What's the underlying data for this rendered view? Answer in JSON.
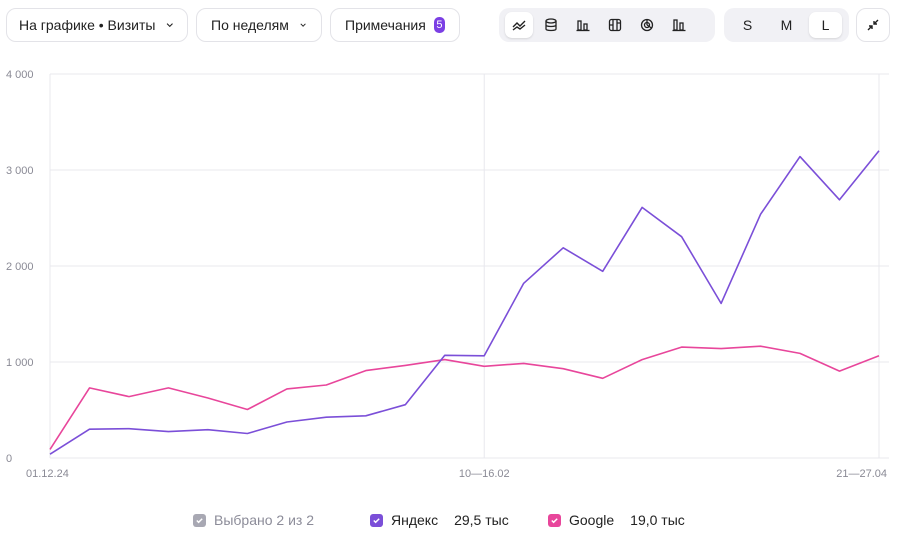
{
  "toolbar": {
    "chart_metric_dropdown": "На графике • Визиты",
    "grouping_dropdown": "По неделям",
    "notes_button": "Примечания",
    "notes_count": "5",
    "size_options": [
      "S",
      "M",
      "L"
    ],
    "selected_size": "L",
    "chart_type_icons": [
      "line-chart-icon",
      "stacked-area-icon",
      "bar-chart-icon",
      "stacked-bar-icon",
      "pie-chart-icon",
      "grouped-bar-icon"
    ]
  },
  "colors": {
    "yandex": "#7b4fd8",
    "google": "#e8469b",
    "accent": "#7b3fe4",
    "grid": "#e8e8ee"
  },
  "legend": {
    "selected": "Выбрано 2 из 2",
    "items": [
      {
        "name": "Яндекс",
        "total": "29,5 тыс"
      },
      {
        "name": "Google",
        "total": "19,0 тыс"
      }
    ]
  },
  "chart_data": {
    "type": "line",
    "x_labels_shown": [
      "01.12.24",
      "10—16.02",
      "21—27.04"
    ],
    "y_ticks": [
      "4 000",
      "3 000",
      "2 000",
      "1 000",
      "0"
    ],
    "ylim": [
      0,
      4000
    ],
    "grid": true,
    "points_count": 22,
    "series": [
      {
        "name": "Яндекс",
        "values": [
          40,
          300,
          305,
          275,
          295,
          255,
          375,
          425,
          440,
          555,
          1070,
          1065,
          1820,
          2190,
          1945,
          2610,
          2305,
          1610,
          2540,
          3140,
          2690,
          3200
        ]
      },
      {
        "name": "Google",
        "values": [
          90,
          730,
          640,
          730,
          625,
          505,
          720,
          760,
          910,
          965,
          1025,
          955,
          985,
          930,
          830,
          1025,
          1155,
          1140,
          1165,
          1090,
          905,
          1065
        ]
      }
    ]
  }
}
